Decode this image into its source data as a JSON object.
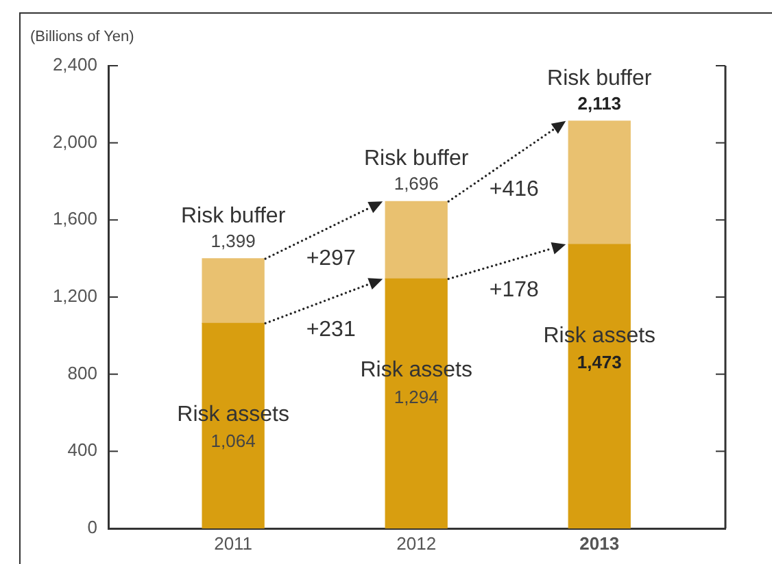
{
  "chart_data": {
    "type": "bar",
    "stacked": true,
    "ylabel": "(Billions of Yen)",
    "categories": [
      "2011",
      "2012",
      "2013"
    ],
    "series": [
      {
        "name": "Risk assets",
        "color": "#d89e10",
        "values": [
          1064,
          1294,
          1473
        ],
        "value_labels": [
          "1,064",
          "1,294",
          "1,473"
        ]
      },
      {
        "name": "Risk buffer",
        "color": "#e9c170",
        "values": [
          335,
          402,
          640
        ]
      }
    ],
    "totals": [
      "1,399",
      "1,696",
      "2,113"
    ],
    "ylim": [
      0,
      2400
    ],
    "yticks": [
      0,
      400,
      800,
      {
        "value": 1200,
        "label": "1,200"
      },
      {
        "value": 1600,
        "label": "1,600"
      },
      {
        "value": 2000,
        "label": "2,000"
      },
      {
        "value": 2400,
        "label": "2,400"
      }
    ],
    "annotations": [
      "+297",
      "+231",
      "+416",
      "+178"
    ]
  }
}
